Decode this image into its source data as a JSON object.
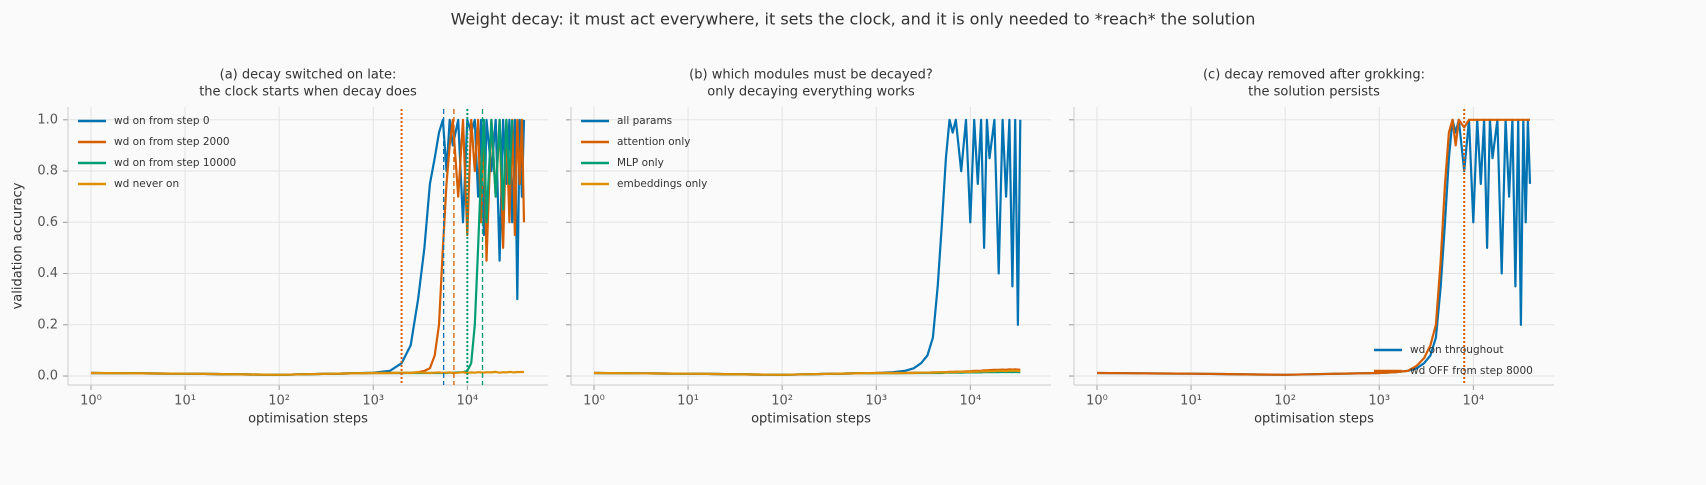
{
  "title": "Weight decay: it must act everywhere, it sets the clock, and it is only needed to *reach* the solution",
  "chart_data": [
    {
      "type": "line",
      "title": [
        "(a) decay switched on late:",
        "the clock starts when decay does"
      ],
      "xlabel": "optimisation steps",
      "ylabel": "validation accuracy",
      "xscale": "log",
      "grid": true,
      "legend": "upper left",
      "xlim": [
        0.57,
        72000
      ],
      "ylim": [
        -0.035,
        1.05
      ],
      "xticks": [
        {
          "value": 1,
          "label": "10⁰"
        },
        {
          "value": 10,
          "label": "10¹"
        },
        {
          "value": 100,
          "label": "10²"
        },
        {
          "value": 1000,
          "label": "10³"
        },
        {
          "value": 10000,
          "label": "10⁴"
        }
      ],
      "yticks": [
        {
          "value": 0,
          "label": "0.0"
        },
        {
          "value": 0.2,
          "label": "0.2"
        },
        {
          "value": 0.4,
          "label": "0.4"
        },
        {
          "value": 0.6,
          "label": "0.6"
        },
        {
          "value": 0.8,
          "label": "0.8"
        },
        {
          "value": 1,
          "label": "1.0"
        }
      ],
      "x": [
        1,
        2,
        5,
        10,
        20,
        50,
        100,
        200,
        500,
        1000,
        1500,
        2000,
        2500,
        3000,
        3500,
        4000,
        4500,
        5000,
        5500,
        6000,
        6500,
        7000,
        8000,
        9000,
        10000,
        11000,
        12000,
        13000,
        14000,
        15000,
        16000,
        18000,
        20000,
        22000,
        24000,
        26000,
        28000,
        30000,
        32000,
        34000,
        36000,
        38000,
        40000
      ],
      "series": [
        {
          "name": "wd on from step 0",
          "color": "#0173b2",
          "values": [
            0.012,
            0.011,
            0.01,
            0.009,
            0.008,
            0.006,
            0.005,
            0.007,
            0.01,
            0.013,
            0.02,
            0.05,
            0.12,
            0.3,
            0.5,
            0.75,
            0.85,
            0.95,
            1,
            0.8,
            1,
            0.9,
            1,
            0.6,
            1,
            0.95,
            1,
            0.7,
            1,
            0.55,
            1,
            0.8,
            1,
            0.45,
            1,
            0.75,
            1,
            0.6,
            1,
            0.3,
            1,
            0.7,
            1
          ]
        },
        {
          "name": "wd on from step 2000",
          "color": "#d55e00",
          "values": [
            0.012,
            0.011,
            0.01,
            0.009,
            0.008,
            0.006,
            0.005,
            0.007,
            0.01,
            0.012,
            0.012,
            0.012,
            0.013,
            0.015,
            0.02,
            0.03,
            0.08,
            0.2,
            0.5,
            0.75,
            0.9,
            1,
            0.7,
            1,
            0.55,
            1,
            0.8,
            1,
            0.6,
            1,
            0.45,
            1,
            0.7,
            1,
            0.5,
            1,
            0.6,
            1,
            0.55,
            1,
            0.75,
            1,
            0.6
          ]
        },
        {
          "name": "wd on from step 10000",
          "color": "#029e73",
          "values": [
            0.012,
            0.011,
            0.01,
            0.009,
            0.008,
            0.006,
            0.005,
            0.007,
            0.01,
            0.012,
            0.012,
            0.012,
            0.012,
            0.012,
            0.012,
            0.012,
            0.012,
            0.012,
            0.012,
            0.012,
            0.013,
            0.013,
            0.014,
            0.015,
            0.02,
            0.05,
            0.2,
            0.5,
            0.8,
            1,
            0.6,
            1,
            0.7,
            1,
            0.65,
            1,
            0.75,
            1,
            null,
            null,
            null,
            null,
            null
          ]
        },
        {
          "name": "wd never on",
          "color": "#de8f05",
          "values": [
            0.012,
            0.011,
            0.01,
            0.009,
            0.008,
            0.006,
            0.005,
            0.007,
            0.01,
            0.012,
            0.012,
            0.013,
            0.012,
            0.014,
            0.013,
            0.012,
            0.013,
            0.014,
            0.012,
            0.013,
            0.014,
            0.012,
            0.013,
            0.015,
            0.012,
            0.014,
            0.013,
            0.015,
            0.014,
            0.013,
            0.015,
            0.014,
            0.016,
            0.013,
            0.015,
            0.014,
            0.016,
            0.015,
            0.014,
            0.016,
            0.015,
            0.016,
            0.015
          ]
        }
      ],
      "vlines": [
        {
          "x": 2000,
          "color": "#d55e00",
          "style": "dotted"
        },
        {
          "x": 5600,
          "color": "#0173b2",
          "style": "dashed"
        },
        {
          "x": 7200,
          "color": "#d55e00",
          "style": "dashed"
        },
        {
          "x": 10000,
          "color": "#029e73",
          "style": "dotted"
        },
        {
          "x": 14500,
          "color": "#029e73",
          "style": "dashed"
        }
      ]
    },
    {
      "type": "line",
      "title": [
        "(b) which modules must be decayed?",
        "only decaying everything works"
      ],
      "xlabel": "optimisation steps",
      "xscale": "log",
      "grid": true,
      "legend": "upper left",
      "xlim": [
        0.57,
        72000
      ],
      "ylim": [
        -0.035,
        1.05
      ],
      "xticks": [
        {
          "value": 1,
          "label": "10⁰"
        },
        {
          "value": 10,
          "label": "10¹"
        },
        {
          "value": 100,
          "label": "10²"
        },
        {
          "value": 1000,
          "label": "10³"
        },
        {
          "value": 10000,
          "label": "10⁴"
        }
      ],
      "yticks": [
        0,
        0.2,
        0.4,
        0.6,
        0.8,
        1
      ],
      "x": [
        1,
        2,
        5,
        10,
        20,
        50,
        100,
        200,
        500,
        1000,
        1500,
        2000,
        2500,
        3000,
        3500,
        4000,
        4500,
        5000,
        5500,
        6000,
        6500,
        7000,
        8000,
        9000,
        10000,
        11000,
        12000,
        13000,
        14000,
        15000,
        16000,
        18000,
        20000,
        22000,
        24000,
        26000,
        28000,
        30000,
        32000,
        34000,
        36000,
        38000,
        40000
      ],
      "series": [
        {
          "name": "all params",
          "color": "#0173b2",
          "values": [
            0.012,
            0.011,
            0.01,
            0.009,
            0.008,
            0.006,
            0.005,
            0.007,
            0.01,
            0.012,
            0.015,
            0.02,
            0.03,
            0.05,
            0.08,
            0.15,
            0.35,
            0.6,
            0.85,
            1,
            0.95,
            1,
            0.8,
            1,
            0.6,
            1,
            0.75,
            1,
            0.5,
            1,
            0.85,
            1,
            0.4,
            1,
            0.7,
            1,
            0.35,
            1,
            0.2,
            1,
            null,
            null,
            null
          ]
        },
        {
          "name": "attention only",
          "color": "#d55e00",
          "values": [
            0.012,
            0.011,
            0.01,
            0.009,
            0.008,
            0.006,
            0.005,
            0.007,
            0.01,
            0.012,
            0.012,
            0.012,
            0.013,
            0.013,
            0.013,
            0.014,
            0.014,
            0.015,
            0.015,
            0.016,
            0.016,
            0.017,
            0.017,
            0.018,
            0.019,
            0.02,
            0.02,
            0.021,
            0.022,
            0.022,
            0.023,
            0.024,
            0.024,
            0.025,
            0.024,
            0.026,
            0.025,
            0.026,
            0.025,
            0.024,
            null,
            null,
            null
          ]
        },
        {
          "name": "MLP only",
          "color": "#029e73",
          "values": [
            0.012,
            0.011,
            0.01,
            0.009,
            0.008,
            0.006,
            0.005,
            0.007,
            0.01,
            0.011,
            0.011,
            0.011,
            0.012,
            0.012,
            0.012,
            0.012,
            0.012,
            0.012,
            0.013,
            0.013,
            0.013,
            0.013,
            0.013,
            0.014,
            0.014,
            0.014,
            0.014,
            0.014,
            0.015,
            0.015,
            0.015,
            0.015,
            0.015,
            0.016,
            0.015,
            0.016,
            0.015,
            0.016,
            0.015,
            0.015,
            null,
            null,
            null
          ]
        },
        {
          "name": "embeddings only",
          "color": "#de8f05",
          "values": [
            0.012,
            0.011,
            0.01,
            0.009,
            0.008,
            0.006,
            0.005,
            0.007,
            0.01,
            0.012,
            0.012,
            0.012,
            0.012,
            0.013,
            0.013,
            0.013,
            0.014,
            0.014,
            0.014,
            0.015,
            0.015,
            0.015,
            0.016,
            0.016,
            0.016,
            0.017,
            0.017,
            0.018,
            0.018,
            0.018,
            0.019,
            0.019,
            0.02,
            0.02,
            0.019,
            0.021,
            0.02,
            0.021,
            0.02,
            0.02,
            null,
            null,
            null
          ]
        }
      ]
    },
    {
      "type": "line",
      "title": [
        "(c) decay removed after grokking:",
        "the solution persists"
      ],
      "xlabel": "optimisation steps",
      "xscale": "log",
      "grid": true,
      "legend": "lower right",
      "xlim": [
        0.57,
        72000
      ],
      "ylim": [
        -0.035,
        1.05
      ],
      "xticks": [
        {
          "value": 1,
          "label": "10⁰"
        },
        {
          "value": 10,
          "label": "10¹"
        },
        {
          "value": 100,
          "label": "10²"
        },
        {
          "value": 1000,
          "label": "10³"
        },
        {
          "value": 10000,
          "label": "10⁴"
        }
      ],
      "yticks": [
        0,
        0.2,
        0.4,
        0.6,
        0.8,
        1
      ],
      "x": [
        1,
        2,
        5,
        10,
        20,
        50,
        100,
        200,
        500,
        1000,
        1500,
        2000,
        2500,
        3000,
        3500,
        4000,
        4500,
        5000,
        5500,
        6000,
        6500,
        7000,
        8000,
        9000,
        10000,
        11000,
        12000,
        13000,
        14000,
        15000,
        16000,
        18000,
        20000,
        22000,
        24000,
        26000,
        28000,
        30000,
        32000,
        34000,
        36000,
        38000,
        40000
      ],
      "series": [
        {
          "name": "wd on throughout",
          "color": "#0173b2",
          "values": [
            0.012,
            0.011,
            0.01,
            0.009,
            0.008,
            0.006,
            0.005,
            0.007,
            0.01,
            0.012,
            0.015,
            0.02,
            0.03,
            0.05,
            0.08,
            0.15,
            0.35,
            0.6,
            0.85,
            1,
            0.95,
            1,
            0.8,
            1,
            0.6,
            1,
            0.75,
            1,
            0.5,
            1,
            0.85,
            1,
            0.4,
            1,
            0.7,
            1,
            0.35,
            1,
            0.2,
            1,
            0.6,
            1,
            0.75
          ]
        },
        {
          "name": "wd OFF from step 8000",
          "color": "#d55e00",
          "values": [
            0.012,
            0.011,
            0.01,
            0.009,
            0.008,
            0.006,
            0.005,
            0.007,
            0.01,
            0.012,
            0.015,
            0.02,
            0.04,
            0.07,
            0.12,
            0.2,
            0.45,
            0.75,
            0.95,
            1,
            0.9,
            1,
            0.97,
            1,
            1,
            1,
            1,
            1,
            1,
            1,
            1,
            1,
            1,
            1,
            1,
            1,
            1,
            1,
            1,
            1,
            1,
            1,
            1
          ]
        }
      ],
      "vlines": [
        {
          "x": 8000,
          "color": "#d55e00",
          "style": "dotted"
        }
      ]
    }
  ]
}
